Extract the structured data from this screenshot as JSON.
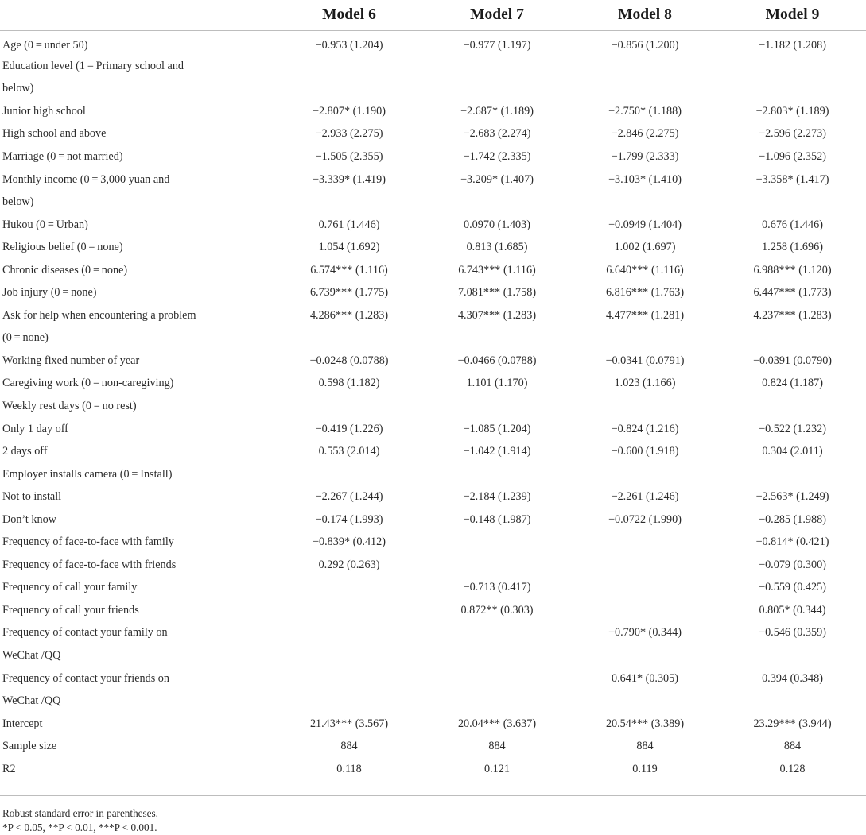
{
  "table": {
    "headers": [
      "",
      "Model 6",
      "Model 7",
      "Model 8",
      "Model 9"
    ],
    "rows": [
      [
        "Age (0 = under 50)",
        "−0.953 (1.204)",
        "−0.977 (1.197)",
        "−0.856 (1.200)",
        "−1.182 (1.208)"
      ],
      [
        "Education level (1 = Primary school and",
        "",
        "",
        "",
        ""
      ],
      [
        "below)",
        "",
        "",
        "",
        ""
      ],
      [
        "Junior high school",
        "−2.807* (1.190)",
        "−2.687* (1.189)",
        "−2.750* (1.188)",
        "−2.803* (1.189)"
      ],
      [
        "High school and above",
        "−2.933 (2.275)",
        "−2.683 (2.274)",
        "−2.846 (2.275)",
        "−2.596 (2.273)"
      ],
      [
        "Marriage (0 = not married)",
        "−1.505 (2.355)",
        "−1.742 (2.335)",
        "−1.799 (2.333)",
        "−1.096 (2.352)"
      ],
      [
        "Monthly income (0 = 3,000 yuan and",
        "−3.339* (1.419)",
        "−3.209* (1.407)",
        "−3.103* (1.410)",
        "−3.358* (1.417)"
      ],
      [
        "below)",
        "",
        "",
        "",
        ""
      ],
      [
        "Hukou (0 = Urban)",
        "0.761 (1.446)",
        "0.0970 (1.403)",
        "−0.0949 (1.404)",
        "0.676 (1.446)"
      ],
      [
        "Religious belief (0 = none)",
        "1.054 (1.692)",
        "0.813 (1.685)",
        "1.002 (1.697)",
        "1.258 (1.696)"
      ],
      [
        "Chronic diseases (0 = none)",
        "6.574*** (1.116)",
        "6.743*** (1.116)",
        "6.640*** (1.116)",
        "6.988*** (1.120)"
      ],
      [
        "Job injury (0 = none)",
        "6.739*** (1.775)",
        "7.081*** (1.758)",
        "6.816*** (1.763)",
        "6.447*** (1.773)"
      ],
      [
        "Ask for help when encountering a problem",
        "4.286*** (1.283)",
        "4.307*** (1.283)",
        "4.477*** (1.281)",
        "4.237*** (1.283)"
      ],
      [
        "(0 = none)",
        "",
        "",
        "",
        ""
      ],
      [
        "Working fixed number of year",
        "−0.0248 (0.0788)",
        "−0.0466 (0.0788)",
        "−0.0341 (0.0791)",
        "−0.0391 (0.0790)"
      ],
      [
        "Caregiving work (0 = non-caregiving)",
        "0.598 (1.182)",
        "1.101 (1.170)",
        "1.023 (1.166)",
        "0.824 (1.187)"
      ],
      [
        "Weekly rest days (0 = no rest)",
        "",
        "",
        "",
        ""
      ],
      [
        "Only 1 day off",
        "−0.419 (1.226)",
        "−1.085 (1.204)",
        "−0.824 (1.216)",
        "−0.522 (1.232)"
      ],
      [
        "2 days off",
        "0.553 (2.014)",
        "−1.042 (1.914)",
        "−0.600 (1.918)",
        "0.304 (2.011)"
      ],
      [
        "Employer installs camera (0 = Install)",
        "",
        "",
        "",
        ""
      ],
      [
        "Not to install",
        "−2.267 (1.244)",
        "−2.184 (1.239)",
        "−2.261 (1.246)",
        "−2.563* (1.249)"
      ],
      [
        "Don’t know",
        "−0.174 (1.993)",
        "−0.148 (1.987)",
        "−0.0722 (1.990)",
        "−0.285 (1.988)"
      ],
      [
        "Frequency of face-to-face with family",
        "−0.839* (0.412)",
        "",
        "",
        "−0.814* (0.421)"
      ],
      [
        "Frequency of face-to-face with friends",
        "0.292 (0.263)",
        "",
        "",
        "−0.079 (0.300)"
      ],
      [
        "Frequency of call your family",
        "",
        "−0.713 (0.417)",
        "",
        "−0.559 (0.425)"
      ],
      [
        "Frequency of call your friends",
        "",
        "0.872** (0.303)",
        "",
        "0.805* (0.344)"
      ],
      [
        "Frequency of contact your family on",
        "",
        "",
        "−0.790* (0.344)",
        "−0.546 (0.359)"
      ],
      [
        "WeChat /QQ",
        "",
        "",
        "",
        ""
      ],
      [
        "Frequency of contact your friends on",
        "",
        "",
        "0.641* (0.305)",
        "0.394 (0.348)"
      ],
      [
        "WeChat /QQ",
        "",
        "",
        "",
        ""
      ],
      [
        "Intercept",
        "21.43*** (3.567)",
        "20.04*** (3.637)",
        "20.54*** (3.389)",
        "23.29*** (3.944)"
      ],
      [
        "Sample size",
        "884",
        "884",
        "884",
        "884"
      ],
      [
        "R2",
        "0.118",
        "0.121",
        "0.119",
        "0.128"
      ]
    ]
  },
  "notes": {
    "line1": "Robust standard error in parentheses.",
    "line2": "*P < 0.05, **P < 0.01, ***P < 0.001."
  }
}
